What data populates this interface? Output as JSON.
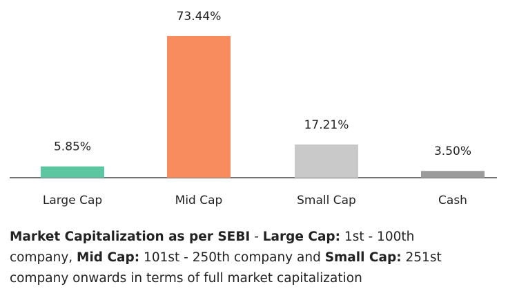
{
  "chart_data": {
    "type": "bar",
    "categories": [
      "Large Cap",
      "Mid Cap",
      "Small Cap",
      "Cash"
    ],
    "values": [
      5.85,
      73.44,
      17.21,
      3.5
    ],
    "value_labels": [
      "5.85%",
      "73.44%",
      "17.21%",
      "3.50%"
    ],
    "colors": [
      "#5cc6a0",
      "#f98c5e",
      "#c9c9c9",
      "#9b9b9b"
    ]
  },
  "footnote": [
    {
      "text": "Market Capitalization as per SEBI",
      "bold": true
    },
    {
      "text": " - ",
      "bold": false
    },
    {
      "text": "Large Cap:",
      "bold": true
    },
    {
      "text": " 1st - 100th company, ",
      "bold": false
    },
    {
      "text": "Mid Cap:",
      "bold": true
    },
    {
      "text": " 101st - 250th company and ",
      "bold": false
    },
    {
      "text": "Small Cap:",
      "bold": true
    },
    {
      "text": " 251st company onwards in terms of full market capitalization",
      "bold": false
    }
  ]
}
